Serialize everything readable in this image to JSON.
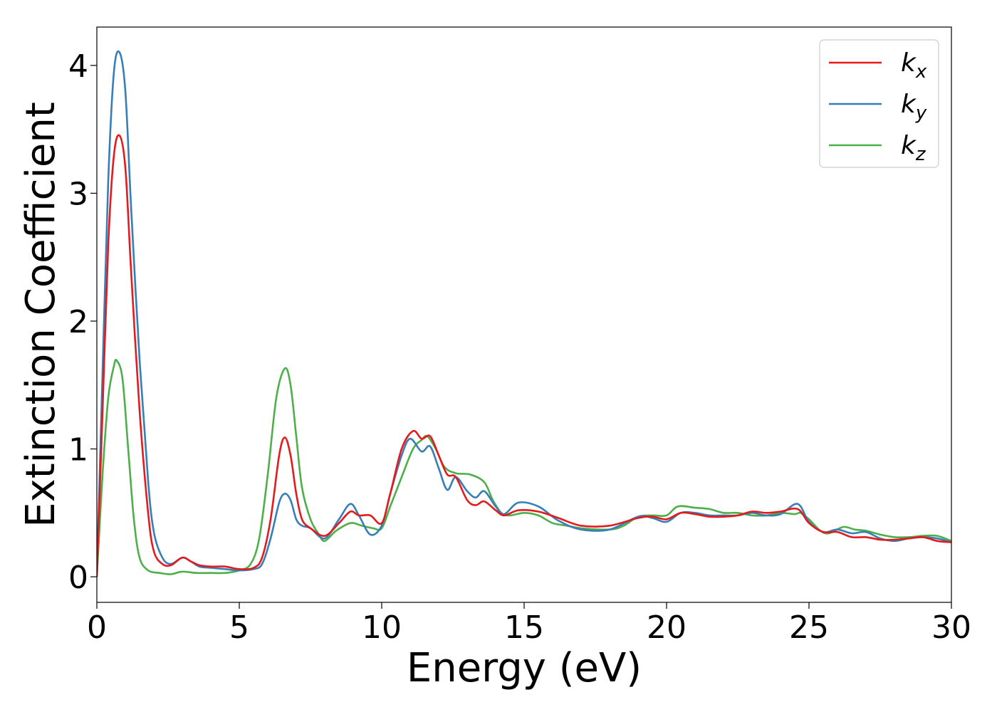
{
  "chart_data": {
    "type": "line",
    "title": "",
    "xlabel": "Energy (eV)",
    "ylabel": "Extinction Coefficient",
    "xlim": [
      0,
      30
    ],
    "ylim": [
      -0.2,
      4.3
    ],
    "xticks": [
      0,
      5,
      10,
      15,
      20,
      25,
      30
    ],
    "yticks": [
      0,
      1,
      2,
      3,
      4
    ],
    "grid": false,
    "legend_position": "top-right",
    "series": [
      {
        "name": "k",
        "subscript": "x",
        "color": "#e41a1c",
        "points": [
          [
            0,
            0
          ],
          [
            0.2,
            1.3
          ],
          [
            0.4,
            2.6
          ],
          [
            0.6,
            3.3
          ],
          [
            0.8,
            3.45
          ],
          [
            1.0,
            3.2
          ],
          [
            1.2,
            2.4
          ],
          [
            1.5,
            1.3
          ],
          [
            1.8,
            0.5
          ],
          [
            2.0,
            0.2
          ],
          [
            2.3,
            0.1
          ],
          [
            2.6,
            0.09
          ],
          [
            3.0,
            0.15
          ],
          [
            3.3,
            0.12
          ],
          [
            3.6,
            0.09
          ],
          [
            4.0,
            0.08
          ],
          [
            4.5,
            0.08
          ],
          [
            5.0,
            0.06
          ],
          [
            5.5,
            0.07
          ],
          [
            5.8,
            0.15
          ],
          [
            6.1,
            0.45
          ],
          [
            6.4,
            0.95
          ],
          [
            6.6,
            1.09
          ],
          [
            6.8,
            0.95
          ],
          [
            7.0,
            0.65
          ],
          [
            7.2,
            0.45
          ],
          [
            7.5,
            0.38
          ],
          [
            8.0,
            0.32
          ],
          [
            8.5,
            0.42
          ],
          [
            8.9,
            0.51
          ],
          [
            9.2,
            0.48
          ],
          [
            9.6,
            0.48
          ],
          [
            10.0,
            0.42
          ],
          [
            10.3,
            0.65
          ],
          [
            10.7,
            1.0
          ],
          [
            11.1,
            1.14
          ],
          [
            11.4,
            1.08
          ],
          [
            11.7,
            1.1
          ],
          [
            12.0,
            0.95
          ],
          [
            12.3,
            0.8
          ],
          [
            12.6,
            0.78
          ],
          [
            13.0,
            0.6
          ],
          [
            13.3,
            0.56
          ],
          [
            13.6,
            0.59
          ],
          [
            14.0,
            0.52
          ],
          [
            14.3,
            0.48
          ],
          [
            14.8,
            0.52
          ],
          [
            15.5,
            0.51
          ],
          [
            16.2,
            0.46
          ],
          [
            17.0,
            0.4
          ],
          [
            18.0,
            0.4
          ],
          [
            19.0,
            0.46
          ],
          [
            19.5,
            0.47
          ],
          [
            20.0,
            0.45
          ],
          [
            20.5,
            0.5
          ],
          [
            21.0,
            0.49
          ],
          [
            21.5,
            0.47
          ],
          [
            22.0,
            0.47
          ],
          [
            22.5,
            0.48
          ],
          [
            23.0,
            0.51
          ],
          [
            23.5,
            0.5
          ],
          [
            24.0,
            0.51
          ],
          [
            24.6,
            0.53
          ],
          [
            25.0,
            0.42
          ],
          [
            25.5,
            0.35
          ],
          [
            26.0,
            0.35
          ],
          [
            26.5,
            0.31
          ],
          [
            27.0,
            0.31
          ],
          [
            27.5,
            0.29
          ],
          [
            28.0,
            0.29
          ],
          [
            28.5,
            0.3
          ],
          [
            29.0,
            0.31
          ],
          [
            29.5,
            0.28
          ],
          [
            30.0,
            0.27
          ]
        ]
      },
      {
        "name": "k",
        "subscript": "y",
        "color": "#377eb8",
        "points": [
          [
            0,
            0
          ],
          [
            0.2,
            1.6
          ],
          [
            0.4,
            3.1
          ],
          [
            0.6,
            3.95
          ],
          [
            0.8,
            4.1
          ],
          [
            1.0,
            3.8
          ],
          [
            1.2,
            2.9
          ],
          [
            1.5,
            1.7
          ],
          [
            1.8,
            0.75
          ],
          [
            2.0,
            0.35
          ],
          [
            2.3,
            0.15
          ],
          [
            2.6,
            0.1
          ],
          [
            3.0,
            0.15
          ],
          [
            3.3,
            0.12
          ],
          [
            3.6,
            0.08
          ],
          [
            4.0,
            0.07
          ],
          [
            4.5,
            0.06
          ],
          [
            5.0,
            0.05
          ],
          [
            5.5,
            0.06
          ],
          [
            5.8,
            0.1
          ],
          [
            6.1,
            0.3
          ],
          [
            6.4,
            0.58
          ],
          [
            6.6,
            0.65
          ],
          [
            6.8,
            0.6
          ],
          [
            7.0,
            0.45
          ],
          [
            7.2,
            0.4
          ],
          [
            7.5,
            0.38
          ],
          [
            8.0,
            0.3
          ],
          [
            8.5,
            0.45
          ],
          [
            8.9,
            0.57
          ],
          [
            9.2,
            0.48
          ],
          [
            9.6,
            0.33
          ],
          [
            10.0,
            0.4
          ],
          [
            10.3,
            0.65
          ],
          [
            10.7,
            0.95
          ],
          [
            11.0,
            1.08
          ],
          [
            11.4,
            0.98
          ],
          [
            11.7,
            1.02
          ],
          [
            12.0,
            0.85
          ],
          [
            12.3,
            0.68
          ],
          [
            12.6,
            0.78
          ],
          [
            13.0,
            0.67
          ],
          [
            13.3,
            0.62
          ],
          [
            13.6,
            0.67
          ],
          [
            14.0,
            0.55
          ],
          [
            14.3,
            0.49
          ],
          [
            14.8,
            0.58
          ],
          [
            15.5,
            0.55
          ],
          [
            16.2,
            0.44
          ],
          [
            17.0,
            0.37
          ],
          [
            18.0,
            0.37
          ],
          [
            19.0,
            0.47
          ],
          [
            19.5,
            0.46
          ],
          [
            20.0,
            0.43
          ],
          [
            20.5,
            0.5
          ],
          [
            21.0,
            0.5
          ],
          [
            21.5,
            0.48
          ],
          [
            22.0,
            0.48
          ],
          [
            22.5,
            0.48
          ],
          [
            23.0,
            0.5
          ],
          [
            23.5,
            0.48
          ],
          [
            24.0,
            0.49
          ],
          [
            24.6,
            0.57
          ],
          [
            25.0,
            0.43
          ],
          [
            25.5,
            0.35
          ],
          [
            26.0,
            0.37
          ],
          [
            26.5,
            0.34
          ],
          [
            27.0,
            0.35
          ],
          [
            27.5,
            0.3
          ],
          [
            28.0,
            0.28
          ],
          [
            28.5,
            0.3
          ],
          [
            29.0,
            0.31
          ],
          [
            29.5,
            0.3
          ],
          [
            30.0,
            0.27
          ]
        ]
      },
      {
        "name": "k",
        "subscript": "z",
        "color": "#4daf4a",
        "points": [
          [
            0,
            0
          ],
          [
            0.2,
            0.8
          ],
          [
            0.4,
            1.4
          ],
          [
            0.6,
            1.65
          ],
          [
            0.7,
            1.69
          ],
          [
            0.9,
            1.55
          ],
          [
            1.1,
            1.0
          ],
          [
            1.3,
            0.45
          ],
          [
            1.5,
            0.15
          ],
          [
            1.8,
            0.05
          ],
          [
            2.2,
            0.03
          ],
          [
            2.6,
            0.02
          ],
          [
            3.0,
            0.04
          ],
          [
            3.5,
            0.03
          ],
          [
            4.0,
            0.03
          ],
          [
            4.5,
            0.03
          ],
          [
            5.0,
            0.05
          ],
          [
            5.4,
            0.1
          ],
          [
            5.7,
            0.3
          ],
          [
            6.0,
            0.8
          ],
          [
            6.3,
            1.4
          ],
          [
            6.6,
            1.63
          ],
          [
            6.8,
            1.5
          ],
          [
            7.0,
            1.1
          ],
          [
            7.2,
            0.7
          ],
          [
            7.5,
            0.45
          ],
          [
            7.8,
            0.33
          ],
          [
            8.0,
            0.28
          ],
          [
            8.4,
            0.36
          ],
          [
            8.9,
            0.42
          ],
          [
            9.3,
            0.4
          ],
          [
            9.7,
            0.38
          ],
          [
            10.0,
            0.38
          ],
          [
            10.3,
            0.55
          ],
          [
            10.7,
            0.78
          ],
          [
            11.1,
            1.0
          ],
          [
            11.4,
            1.07
          ],
          [
            11.6,
            1.1
          ],
          [
            11.9,
            1.0
          ],
          [
            12.2,
            0.86
          ],
          [
            12.6,
            0.81
          ],
          [
            13.1,
            0.8
          ],
          [
            13.6,
            0.74
          ],
          [
            13.9,
            0.6
          ],
          [
            14.2,
            0.5
          ],
          [
            14.5,
            0.48
          ],
          [
            15.0,
            0.5
          ],
          [
            15.5,
            0.48
          ],
          [
            16.0,
            0.42
          ],
          [
            16.5,
            0.4
          ],
          [
            17.0,
            0.38
          ],
          [
            18.0,
            0.37
          ],
          [
            18.5,
            0.4
          ],
          [
            19.0,
            0.47
          ],
          [
            19.5,
            0.48
          ],
          [
            20.0,
            0.48
          ],
          [
            20.4,
            0.55
          ],
          [
            21.0,
            0.54
          ],
          [
            21.5,
            0.53
          ],
          [
            22.0,
            0.5
          ],
          [
            22.5,
            0.5
          ],
          [
            23.0,
            0.48
          ],
          [
            23.5,
            0.48
          ],
          [
            24.0,
            0.5
          ],
          [
            24.5,
            0.49
          ],
          [
            24.7,
            0.5
          ],
          [
            25.0,
            0.45
          ],
          [
            25.4,
            0.36
          ],
          [
            25.7,
            0.34
          ],
          [
            26.2,
            0.39
          ],
          [
            26.6,
            0.37
          ],
          [
            27.0,
            0.36
          ],
          [
            27.5,
            0.33
          ],
          [
            28.0,
            0.31
          ],
          [
            28.5,
            0.31
          ],
          [
            29.0,
            0.32
          ],
          [
            29.5,
            0.32
          ],
          [
            30.0,
            0.28
          ]
        ]
      }
    ]
  }
}
